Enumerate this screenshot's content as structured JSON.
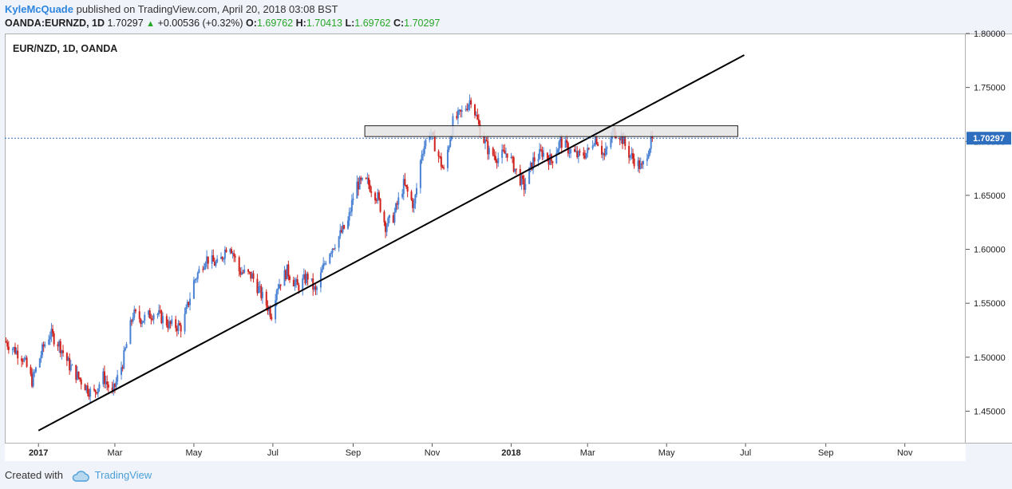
{
  "header": {
    "author": "KyleMcQuade",
    "published_text": " published on TradingView.com, April 20, 2018 03:08 BST",
    "symbol": "OANDA:EURNZD, 1D",
    "last": "1.70297",
    "change": "+0.00536 (+0.32%)",
    "o_label": "O:",
    "o_value": "1.69762",
    "h_label": "H:",
    "h_value": "1.70413",
    "l_label": "L:",
    "l_value": "1.69762",
    "c_label": "C:",
    "c_value": "1.70297"
  },
  "plot_label": "EUR/NZD, 1D, OANDA",
  "footer": {
    "created_with": "Created with",
    "brand": "TradingView"
  },
  "colors": {
    "up": "#4a82d4",
    "down": "#d0211c",
    "trendline": "#000000",
    "zone_fill": "#e4e4e4",
    "price_line": "#2e6ebf",
    "price_tag": "#2e6ebf"
  },
  "chart_data": {
    "type": "candlestick",
    "instrument": "EUR/NZD",
    "timeframe": "1D",
    "ylim": [
      1.42,
      1.8
    ],
    "yticks": [
      "1.80000",
      "1.75000",
      "1.70000",
      "1.65000",
      "1.60000",
      "1.55000",
      "1.50000",
      "1.45000"
    ],
    "ytick_values": [
      1.8,
      1.75,
      1.7,
      1.65,
      1.6,
      1.55,
      1.5,
      1.45
    ],
    "xlim": [
      "2016-12-06",
      "2018-12-18"
    ],
    "xticks": [
      {
        "label": "2017",
        "date": "2017-01-01",
        "bold": true
      },
      {
        "label": "Mar",
        "date": "2017-03-01"
      },
      {
        "label": "May",
        "date": "2017-05-01"
      },
      {
        "label": "Jul",
        "date": "2017-07-01"
      },
      {
        "label": "Sep",
        "date": "2017-09-01"
      },
      {
        "label": "Nov",
        "date": "2017-11-01"
      },
      {
        "label": "2018",
        "date": "2018-01-01",
        "bold": true
      },
      {
        "label": "Mar",
        "date": "2018-03-01"
      },
      {
        "label": "May",
        "date": "2018-05-01"
      },
      {
        "label": "Jul",
        "date": "2018-07-01"
      },
      {
        "label": "Sep",
        "date": "2018-09-01"
      },
      {
        "label": "Nov",
        "date": "2018-11-01"
      }
    ],
    "current_price": 1.70297,
    "current_price_label": "1.70297",
    "close_path": [
      [
        "2016-12-06",
        1.515
      ],
      [
        "2016-12-20",
        1.5
      ],
      [
        "2016-12-27",
        1.478
      ],
      [
        "2017-01-05",
        1.51
      ],
      [
        "2017-01-10",
        1.522
      ],
      [
        "2017-01-17",
        1.512
      ],
      [
        "2017-01-25",
        1.492
      ],
      [
        "2017-02-03",
        1.478
      ],
      [
        "2017-02-12",
        1.465
      ],
      [
        "2017-02-20",
        1.482
      ],
      [
        "2017-02-27",
        1.466
      ],
      [
        "2017-03-07",
        1.495
      ],
      [
        "2017-03-15",
        1.54
      ],
      [
        "2017-03-22",
        1.535
      ],
      [
        "2017-04-01",
        1.542
      ],
      [
        "2017-04-12",
        1.53
      ],
      [
        "2017-04-22",
        1.528
      ],
      [
        "2017-05-01",
        1.57
      ],
      [
        "2017-05-10",
        1.592
      ],
      [
        "2017-05-20",
        1.585
      ],
      [
        "2017-05-28",
        1.608
      ],
      [
        "2017-06-05",
        1.58
      ],
      [
        "2017-06-15",
        1.575
      ],
      [
        "2017-06-22",
        1.558
      ],
      [
        "2017-06-30",
        1.54
      ],
      [
        "2017-07-04",
        1.565
      ],
      [
        "2017-07-12",
        1.58
      ],
      [
        "2017-07-20",
        1.565
      ],
      [
        "2017-07-28",
        1.575
      ],
      [
        "2017-08-03",
        1.56
      ],
      [
        "2017-08-12",
        1.595
      ],
      [
        "2017-08-20",
        1.61
      ],
      [
        "2017-08-28",
        1.625
      ],
      [
        "2017-09-03",
        1.66
      ],
      [
        "2017-09-12",
        1.662
      ],
      [
        "2017-09-20",
        1.648
      ],
      [
        "2017-09-26",
        1.622
      ],
      [
        "2017-10-02",
        1.63
      ],
      [
        "2017-10-10",
        1.66
      ],
      [
        "2017-10-18",
        1.64
      ],
      [
        "2017-10-24",
        1.69
      ],
      [
        "2017-10-30",
        1.71
      ],
      [
        "2017-11-05",
        1.69
      ],
      [
        "2017-11-10",
        1.672
      ],
      [
        "2017-11-17",
        1.718
      ],
      [
        "2017-11-25",
        1.728
      ],
      [
        "2017-12-01",
        1.74
      ],
      [
        "2017-12-08",
        1.71
      ],
      [
        "2017-12-15",
        1.69
      ],
      [
        "2017-12-22",
        1.685
      ],
      [
        "2017-12-29",
        1.69
      ],
      [
        "2018-01-05",
        1.672
      ],
      [
        "2018-01-11",
        1.658
      ],
      [
        "2018-01-18",
        1.682
      ],
      [
        "2018-01-25",
        1.69
      ],
      [
        "2018-02-01",
        1.682
      ],
      [
        "2018-02-08",
        1.7
      ],
      [
        "2018-02-15",
        1.692
      ],
      [
        "2018-02-22",
        1.686
      ],
      [
        "2018-03-01",
        1.69
      ],
      [
        "2018-03-07",
        1.705
      ],
      [
        "2018-03-14",
        1.686
      ],
      [
        "2018-03-21",
        1.71
      ],
      [
        "2018-03-27",
        1.705
      ],
      [
        "2018-04-01",
        1.69
      ],
      [
        "2018-04-08",
        1.68
      ],
      [
        "2018-04-12",
        1.675
      ],
      [
        "2018-04-16",
        1.69
      ],
      [
        "2018-04-20",
        1.70297
      ]
    ],
    "trendline": {
      "from": [
        "2017-01-01",
        1.432
      ],
      "to": [
        "2018-06-30",
        1.78
      ]
    },
    "resistance_zone": {
      "from": "2017-09-10",
      "to": "2018-06-25",
      "low": 1.7045,
      "high": 1.7145
    }
  }
}
